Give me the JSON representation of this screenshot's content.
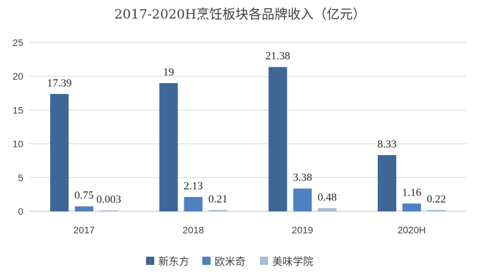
{
  "chart_data": {
    "type": "bar",
    "title": "2017-2020H烹饪板块各品牌收入（亿元）",
    "categories": [
      "2017",
      "2018",
      "2019",
      "2020H"
    ],
    "series": [
      {
        "name": "新东方",
        "values": [
          17.39,
          19,
          21.38,
          8.33
        ],
        "labels": [
          "17.39",
          "19",
          "21.38",
          "8.33"
        ],
        "color": "#3e6797"
      },
      {
        "name": "欧米奇",
        "values": [
          0.75,
          2.13,
          3.38,
          1.16
        ],
        "labels": [
          "0.75",
          "2.13",
          "3.38",
          "1.16"
        ],
        "color": "#4f81c1"
      },
      {
        "name": "美味学院",
        "values": [
          0.003,
          0.21,
          0.48,
          0.22
        ],
        "labels": [
          "0.003",
          "0.21",
          "0.48",
          "0.22"
        ],
        "color": "#a8bbd9"
      }
    ],
    "ylim": [
      0,
      25
    ],
    "yticks": [
      0,
      5,
      10,
      15,
      20,
      25
    ],
    "grid": true,
    "legend_position": "bottom"
  }
}
